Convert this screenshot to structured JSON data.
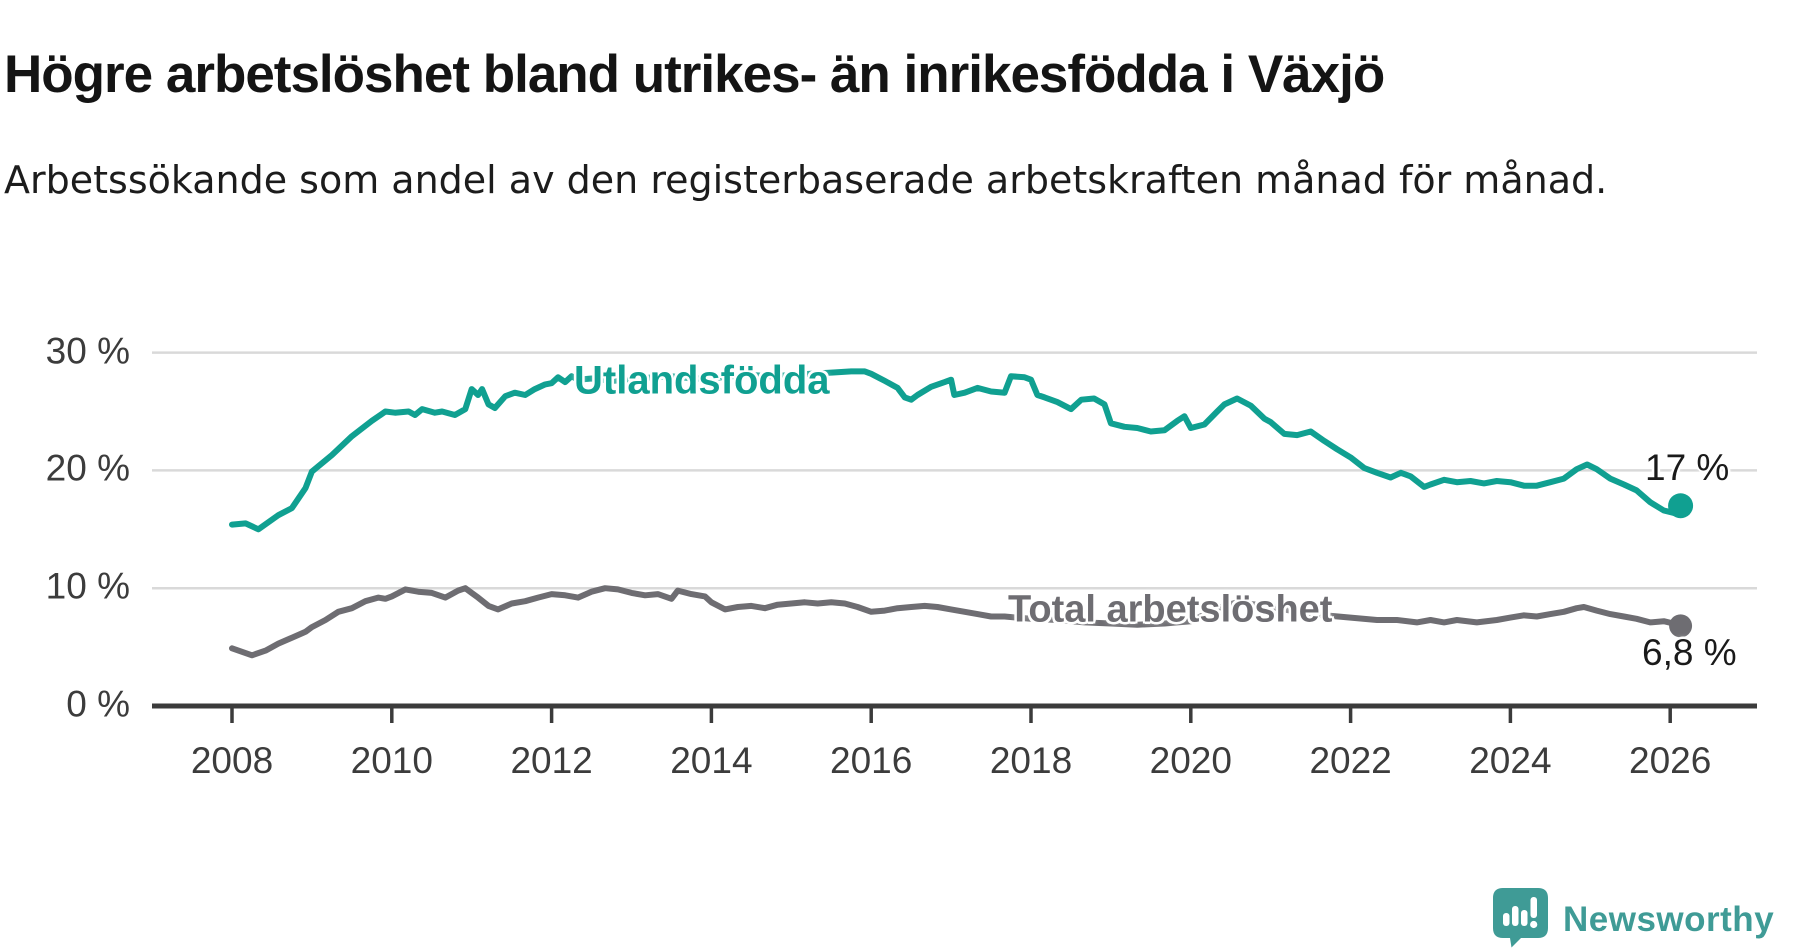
{
  "title": "Högre arbetslöshet bland utrikes- än inrikesfödda i Växjö",
  "subtitle": "Arbetssökande som andel av den registerbaserade arbetskraften månad för månad.",
  "branding": {
    "wordmark": "Newsworthy",
    "icon": "newsworthy-speech-bubble-chart-icon",
    "color": "#3f9b96"
  },
  "chart_data": {
    "type": "line",
    "title": "Högre arbetslöshet bland utrikes- än inrikesfödda i Växjö",
    "subtitle": "Arbetssökande som andel av den registerbaserade arbetskraften månad för månad.",
    "unit": "percent of registered labour force",
    "grid": "horizontal-only",
    "x_axis": {
      "tick_years": [
        2008,
        2010,
        2012,
        2014,
        2016,
        2018,
        2020,
        2022,
        2024,
        2026
      ],
      "ticks": [
        "2008",
        "2010",
        "2012",
        "2014",
        "2016",
        "2018",
        "2020",
        "2022",
        "2024",
        "2026"
      ],
      "range_decimal_years": [
        2008.0,
        2026.2
      ]
    },
    "y_axis": {
      "values": [
        30,
        20,
        10,
        0
      ],
      "ticks": [
        "30 %",
        "20 %",
        "10 %",
        "0 %"
      ],
      "ylim": [
        0,
        31.5
      ]
    },
    "colors": {
      "utlandsfodda": "#10a091",
      "total": "#6e6d72",
      "grid": "#d9d9d9",
      "axis": "#3b3b3b"
    },
    "series": [
      {
        "name": "Utlandsfödda",
        "color": "#10a091",
        "end_label": "17 %",
        "end_value": 17.0,
        "points": [
          [
            2008.0,
            15.4
          ],
          [
            2008.17,
            15.5
          ],
          [
            2008.33,
            15.0
          ],
          [
            2008.58,
            16.2
          ],
          [
            2008.75,
            16.8
          ],
          [
            2008.92,
            18.5
          ],
          [
            2009.0,
            19.9
          ],
          [
            2009.25,
            21.3
          ],
          [
            2009.5,
            22.9
          ],
          [
            2009.75,
            24.2
          ],
          [
            2009.92,
            25.0
          ],
          [
            2010.04,
            24.9
          ],
          [
            2010.21,
            25.0
          ],
          [
            2010.29,
            24.7
          ],
          [
            2010.38,
            25.2
          ],
          [
            2010.54,
            24.9
          ],
          [
            2010.63,
            25.0
          ],
          [
            2010.79,
            24.7
          ],
          [
            2010.92,
            25.2
          ],
          [
            2011.0,
            26.9
          ],
          [
            2011.08,
            26.4
          ],
          [
            2011.13,
            26.9
          ],
          [
            2011.21,
            25.6
          ],
          [
            2011.29,
            25.3
          ],
          [
            2011.42,
            26.3
          ],
          [
            2011.54,
            26.6
          ],
          [
            2011.67,
            26.4
          ],
          [
            2011.79,
            26.9
          ],
          [
            2011.92,
            27.3
          ],
          [
            2012.0,
            27.4
          ],
          [
            2012.08,
            27.9
          ],
          [
            2012.17,
            27.5
          ],
          [
            2012.25,
            28.0
          ],
          [
            2012.33,
            27.7
          ],
          [
            2012.5,
            27.8
          ],
          [
            2012.75,
            27.6
          ],
          [
            2013.0,
            27.7
          ],
          [
            2013.25,
            27.9
          ],
          [
            2013.5,
            28.0
          ],
          [
            2013.75,
            27.8
          ],
          [
            2014.0,
            27.8
          ],
          [
            2014.25,
            28.0
          ],
          [
            2014.5,
            28.1
          ],
          [
            2014.75,
            28.0
          ],
          [
            2015.0,
            28.1
          ],
          [
            2015.25,
            28.2
          ],
          [
            2015.5,
            28.3
          ],
          [
            2015.75,
            28.4
          ],
          [
            2015.92,
            28.4
          ],
          [
            2016.0,
            28.2
          ],
          [
            2016.17,
            27.6
          ],
          [
            2016.33,
            27.0
          ],
          [
            2016.42,
            26.2
          ],
          [
            2016.5,
            26.0
          ],
          [
            2016.58,
            26.4
          ],
          [
            2016.75,
            27.1
          ],
          [
            2016.92,
            27.5
          ],
          [
            2017.0,
            27.7
          ],
          [
            2017.04,
            26.4
          ],
          [
            2017.17,
            26.6
          ],
          [
            2017.33,
            27.0
          ],
          [
            2017.5,
            26.7
          ],
          [
            2017.67,
            26.6
          ],
          [
            2017.75,
            28.0
          ],
          [
            2017.92,
            27.9
          ],
          [
            2018.0,
            27.7
          ],
          [
            2018.08,
            26.4
          ],
          [
            2018.17,
            26.2
          ],
          [
            2018.33,
            25.8
          ],
          [
            2018.5,
            25.2
          ],
          [
            2018.63,
            26.0
          ],
          [
            2018.79,
            26.1
          ],
          [
            2018.92,
            25.6
          ],
          [
            2019.0,
            24.0
          ],
          [
            2019.17,
            23.7
          ],
          [
            2019.33,
            23.6
          ],
          [
            2019.5,
            23.3
          ],
          [
            2019.67,
            23.4
          ],
          [
            2019.83,
            24.2
          ],
          [
            2019.92,
            24.6
          ],
          [
            2020.0,
            23.6
          ],
          [
            2020.17,
            23.9
          ],
          [
            2020.33,
            25.0
          ],
          [
            2020.42,
            25.6
          ],
          [
            2020.58,
            26.1
          ],
          [
            2020.75,
            25.5
          ],
          [
            2020.92,
            24.4
          ],
          [
            2021.0,
            24.1
          ],
          [
            2021.17,
            23.1
          ],
          [
            2021.33,
            23.0
          ],
          [
            2021.5,
            23.3
          ],
          [
            2021.67,
            22.5
          ],
          [
            2021.83,
            21.8
          ],
          [
            2022.0,
            21.1
          ],
          [
            2022.17,
            20.2
          ],
          [
            2022.33,
            19.8
          ],
          [
            2022.5,
            19.4
          ],
          [
            2022.63,
            19.8
          ],
          [
            2022.75,
            19.5
          ],
          [
            2022.92,
            18.6
          ],
          [
            2023.0,
            18.8
          ],
          [
            2023.17,
            19.2
          ],
          [
            2023.33,
            19.0
          ],
          [
            2023.5,
            19.1
          ],
          [
            2023.67,
            18.9
          ],
          [
            2023.83,
            19.1
          ],
          [
            2024.0,
            19.0
          ],
          [
            2024.17,
            18.7
          ],
          [
            2024.33,
            18.7
          ],
          [
            2024.5,
            19.0
          ],
          [
            2024.67,
            19.3
          ],
          [
            2024.83,
            20.1
          ],
          [
            2024.96,
            20.5
          ],
          [
            2025.08,
            20.1
          ],
          [
            2025.25,
            19.3
          ],
          [
            2025.42,
            18.8
          ],
          [
            2025.58,
            18.3
          ],
          [
            2025.75,
            17.3
          ],
          [
            2025.92,
            16.6
          ],
          [
            2026.04,
            16.4
          ],
          [
            2026.13,
            17.0
          ]
        ]
      },
      {
        "name": "Total arbetslöshet",
        "color": "#6e6d72",
        "end_label": "6,8 %",
        "end_value": 6.8,
        "points": [
          [
            2008.0,
            4.9
          ],
          [
            2008.25,
            4.3
          ],
          [
            2008.42,
            4.7
          ],
          [
            2008.58,
            5.3
          ],
          [
            2008.75,
            5.8
          ],
          [
            2008.92,
            6.3
          ],
          [
            2009.0,
            6.7
          ],
          [
            2009.17,
            7.3
          ],
          [
            2009.33,
            8.0
          ],
          [
            2009.5,
            8.3
          ],
          [
            2009.67,
            8.9
          ],
          [
            2009.83,
            9.2
          ],
          [
            2009.92,
            9.1
          ],
          [
            2010.0,
            9.3
          ],
          [
            2010.17,
            9.9
          ],
          [
            2010.33,
            9.7
          ],
          [
            2010.5,
            9.6
          ],
          [
            2010.67,
            9.2
          ],
          [
            2010.83,
            9.8
          ],
          [
            2010.92,
            10.0
          ],
          [
            2011.0,
            9.6
          ],
          [
            2011.08,
            9.2
          ],
          [
            2011.21,
            8.5
          ],
          [
            2011.33,
            8.2
          ],
          [
            2011.5,
            8.7
          ],
          [
            2011.67,
            8.9
          ],
          [
            2011.83,
            9.2
          ],
          [
            2012.0,
            9.5
          ],
          [
            2012.17,
            9.4
          ],
          [
            2012.33,
            9.2
          ],
          [
            2012.5,
            9.7
          ],
          [
            2012.67,
            10.0
          ],
          [
            2012.83,
            9.9
          ],
          [
            2013.0,
            9.6
          ],
          [
            2013.17,
            9.4
          ],
          [
            2013.33,
            9.5
          ],
          [
            2013.5,
            9.1
          ],
          [
            2013.58,
            9.8
          ],
          [
            2013.75,
            9.5
          ],
          [
            2013.92,
            9.3
          ],
          [
            2014.0,
            8.8
          ],
          [
            2014.17,
            8.2
          ],
          [
            2014.33,
            8.4
          ],
          [
            2014.5,
            8.5
          ],
          [
            2014.67,
            8.3
          ],
          [
            2014.83,
            8.6
          ],
          [
            2015.0,
            8.7
          ],
          [
            2015.17,
            8.8
          ],
          [
            2015.33,
            8.7
          ],
          [
            2015.5,
            8.8
          ],
          [
            2015.67,
            8.7
          ],
          [
            2015.83,
            8.4
          ],
          [
            2016.0,
            8.0
          ],
          [
            2016.17,
            8.1
          ],
          [
            2016.33,
            8.3
          ],
          [
            2016.5,
            8.4
          ],
          [
            2016.67,
            8.5
          ],
          [
            2016.83,
            8.4
          ],
          [
            2017.0,
            8.2
          ],
          [
            2017.17,
            8.0
          ],
          [
            2017.33,
            7.8
          ],
          [
            2017.5,
            7.6
          ],
          [
            2017.67,
            7.6
          ],
          [
            2018.0,
            7.4
          ],
          [
            2018.33,
            7.3
          ],
          [
            2018.67,
            7.1
          ],
          [
            2019.0,
            7.0
          ],
          [
            2019.33,
            6.9
          ],
          [
            2019.67,
            7.0
          ],
          [
            2020.0,
            7.2
          ],
          [
            2020.33,
            8.3
          ],
          [
            2020.58,
            8.8
          ],
          [
            2020.83,
            8.6
          ],
          [
            2021.0,
            8.4
          ],
          [
            2021.33,
            8.0
          ],
          [
            2021.67,
            7.7
          ],
          [
            2022.0,
            7.5
          ],
          [
            2022.33,
            7.3
          ],
          [
            2022.58,
            7.3
          ],
          [
            2022.83,
            7.1
          ],
          [
            2023.0,
            7.3
          ],
          [
            2023.17,
            7.1
          ],
          [
            2023.33,
            7.3
          ],
          [
            2023.58,
            7.1
          ],
          [
            2023.83,
            7.3
          ],
          [
            2024.0,
            7.5
          ],
          [
            2024.17,
            7.7
          ],
          [
            2024.33,
            7.6
          ],
          [
            2024.5,
            7.8
          ],
          [
            2024.67,
            8.0
          ],
          [
            2024.83,
            8.3
          ],
          [
            2024.92,
            8.4
          ],
          [
            2025.08,
            8.1
          ],
          [
            2025.25,
            7.8
          ],
          [
            2025.42,
            7.6
          ],
          [
            2025.58,
            7.4
          ],
          [
            2025.75,
            7.1
          ],
          [
            2025.92,
            7.2
          ],
          [
            2026.04,
            7.0
          ],
          [
            2026.13,
            6.8
          ]
        ]
      }
    ]
  }
}
